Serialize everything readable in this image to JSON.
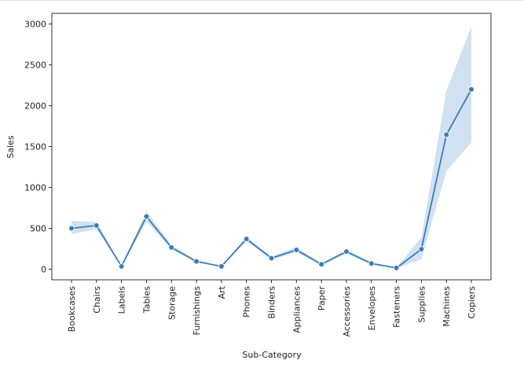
{
  "chart_data": {
    "type": "line",
    "xlabel": "Sub-Category",
    "ylabel": "Sales",
    "ylim": [
      -130,
      3130
    ],
    "yticks": [
      0,
      500,
      1000,
      1500,
      2000,
      2500,
      3000
    ],
    "categories": [
      "Bookcases",
      "Chairs",
      "Labels",
      "Tables",
      "Storage",
      "Furnishings",
      "Art",
      "Phones",
      "Binders",
      "Appliances",
      "Paper",
      "Accessories",
      "Envelopes",
      "Fasteners",
      "Supplies",
      "Machines",
      "Copiers"
    ],
    "series": [
      {
        "values": [
          500,
          535,
          35,
          645,
          265,
          95,
          35,
          370,
          135,
          235,
          60,
          215,
          70,
          15,
          245,
          1645,
          2200
        ],
        "ci_lower": [
          430,
          490,
          25,
          585,
          245,
          85,
          30,
          345,
          115,
          205,
          50,
          190,
          60,
          10,
          120,
          1200,
          1550
        ],
        "ci_upper": [
          590,
          580,
          45,
          710,
          290,
          110,
          40,
          395,
          155,
          270,
          70,
          240,
          80,
          20,
          390,
          2180,
          2970
        ]
      }
    ],
    "line_color": "#3a7cb8",
    "band_color": "#c9dcef",
    "grid": false,
    "legend": "none"
  }
}
